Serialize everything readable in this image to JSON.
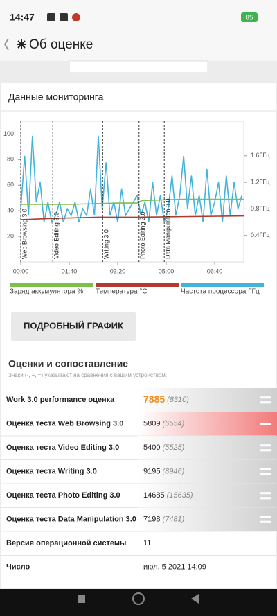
{
  "status": {
    "time": "14:47",
    "battery": "85"
  },
  "header": {
    "title": "Об оценке"
  },
  "chart_data": {
    "type": "line",
    "title": "Данные мониторинга",
    "xlim": [
      0,
      460
    ],
    "xticks": [
      {
        "value": 0,
        "label": "00:00"
      },
      {
        "value": 100,
        "label": "01:40"
      },
      {
        "value": 200,
        "label": "03:20"
      },
      {
        "value": 300,
        "label": "05:00"
      },
      {
        "value": 400,
        "label": "06:40"
      }
    ],
    "ylim": [
      0,
      110
    ],
    "yticks": [
      20,
      40,
      60,
      80,
      100
    ],
    "y2lim": [
      0,
      2.12
    ],
    "y2ticks": [
      {
        "value": 0.4,
        "label": "0.4ГГц"
      },
      {
        "value": 0.8,
        "label": "0.8ГГц"
      },
      {
        "value": 1.2,
        "label": "1.2ГГц"
      },
      {
        "value": 1.6,
        "label": "1.6ГГц"
      }
    ],
    "markers": [
      {
        "x": 0,
        "label": "Web Browsing 3.0"
      },
      {
        "x": 66,
        "label": "Video Editing 3.0"
      },
      {
        "x": 169,
        "label": "Writing 3.0"
      },
      {
        "x": 244,
        "label": "Photo Editing 3.0"
      },
      {
        "x": 296,
        "label": "Data Manipulation 3.0"
      }
    ],
    "series": [
      {
        "name": "Заряд аккумулятора %",
        "color": "#7cc04a",
        "x": [
          0,
          100,
          200,
          240,
          250,
          330,
          460
        ],
        "values": [
          45,
          45,
          46,
          46,
          48,
          49,
          49
        ]
      },
      {
        "name": "Температура °C",
        "color": "#b33a2e",
        "x": [
          0,
          60,
          160,
          240,
          460
        ],
        "values": [
          33,
          34,
          35,
          35,
          36
        ]
      },
      {
        "name": "Частота процессора ГГц",
        "color": "#42b3dc",
        "axis": "y2",
        "x": [
          0,
          8,
          16,
          24,
          32,
          40,
          48,
          56,
          64,
          72,
          80,
          88,
          96,
          104,
          112,
          120,
          128,
          136,
          144,
          152,
          160,
          168,
          176,
          184,
          192,
          200,
          208,
          216,
          224,
          232,
          240,
          248,
          256,
          264,
          272,
          280,
          288,
          296,
          304,
          312,
          320,
          328,
          336,
          344,
          352,
          360,
          368,
          376,
          384,
          392,
          400,
          408,
          416,
          424,
          432,
          440,
          448,
          456
        ],
        "values": [
          0.8,
          1.6,
          0.7,
          1.9,
          0.9,
          1.2,
          0.6,
          0.9,
          0.6,
          0.7,
          0.9,
          0.6,
          0.8,
          0.7,
          0.9,
          0.6,
          0.8,
          0.7,
          1.1,
          0.7,
          1.9,
          0.8,
          1.5,
          0.7,
          0.9,
          0.6,
          1.1,
          0.7,
          0.8,
          0.9,
          1.0,
          0.7,
          0.9,
          0.6,
          1.2,
          0.7,
          1.0,
          0.6,
          0.8,
          1.3,
          0.7,
          1.0,
          1.6,
          0.8,
          1.3,
          0.7,
          1.0,
          0.6,
          1.4,
          0.7,
          0.9,
          1.2,
          0.6,
          1.3,
          0.7,
          1.2,
          0.8,
          1.0
        ]
      }
    ]
  },
  "button": "ПОДРОБНЫЙ ГРАФИК",
  "scores": {
    "title": "Оценки и сопоставление",
    "note": "Знаки (-, +, =) указывают на сравнения с вашим устройством.",
    "rows": [
      {
        "label": "Work 3.0 performance оценка",
        "score": "7885",
        "compare": "(8310)",
        "sign": "="
      },
      {
        "label": "Оценка теста Web Browsing 3.0",
        "score": "5809",
        "compare": "(6554)",
        "sign": "-"
      },
      {
        "label": "Оценка теста Video Editing 3.0",
        "score": "5400",
        "compare": "(5525)",
        "sign": "="
      },
      {
        "label": "Оценка теста Writing 3.0",
        "score": "9195",
        "compare": "(8946)",
        "sign": "="
      },
      {
        "label": "Оценка теста Photo Editing 3.0",
        "score": "14685",
        "compare": "(15635)",
        "sign": "="
      },
      {
        "label": "Оценка теста Data Manipulation 3.0",
        "score": "7198",
        "compare": "(7481)",
        "sign": "="
      }
    ],
    "info": [
      {
        "label": "Версия операционной системы",
        "value": "11"
      },
      {
        "label": "Число",
        "value": "июл. 5 2021 14:09"
      }
    ]
  }
}
